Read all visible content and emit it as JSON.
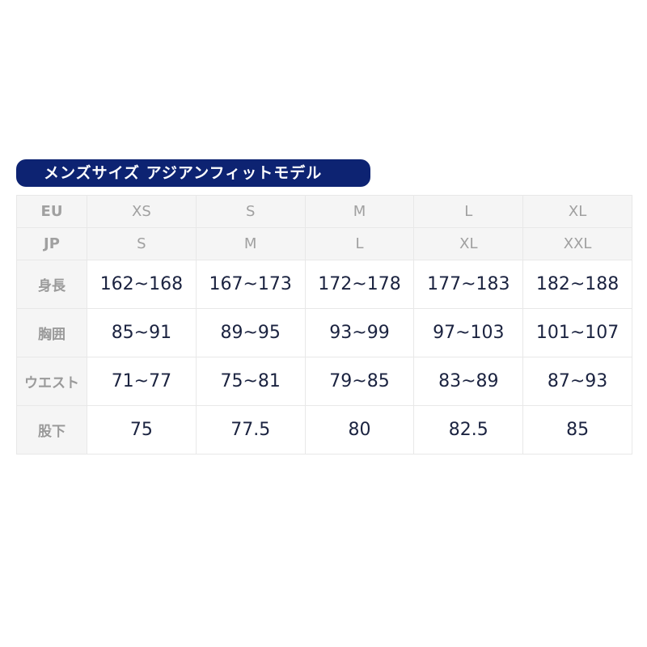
{
  "title": "メンズサイズ アジアンフィットモデル",
  "header_rows": [
    {
      "label": "EU",
      "cells": [
        "XS",
        "S",
        "M",
        "L",
        "XL"
      ]
    },
    {
      "label": "JP",
      "cells": [
        "S",
        "M",
        "L",
        "XL",
        "XXL"
      ]
    }
  ],
  "rows": [
    {
      "label": "身長",
      "cells": [
        "162~168",
        "167~173",
        "172~178",
        "177~183",
        "182~188"
      ]
    },
    {
      "label": "胸囲",
      "cells": [
        "85~91",
        "89~95",
        "93~99",
        "97~103",
        "101~107"
      ]
    },
    {
      "label": "ウエスト",
      "cells": [
        "71~77",
        "75~81",
        "79~85",
        "83~89",
        "87~93"
      ]
    },
    {
      "label": "股下",
      "cells": [
        "75",
        "77.5",
        "80",
        "82.5",
        "85"
      ]
    }
  ]
}
